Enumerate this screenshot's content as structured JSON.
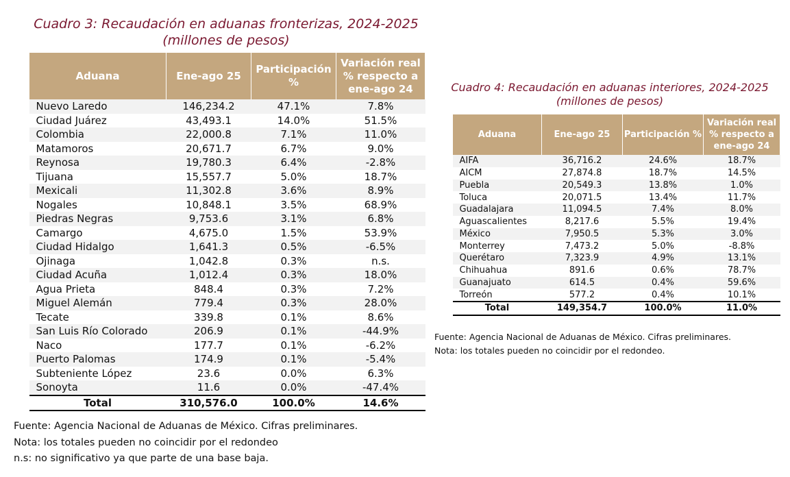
{
  "cuadro3": {
    "title": "Cuadro 3: Recaudación en aduanas fronterizas, 2024-2025",
    "subtitle": "(millones de pesos)",
    "headers": [
      "Aduana",
      "Ene-ago 25",
      "Participación %",
      "Variación real % respecto a ene-ago 24"
    ],
    "rows": [
      [
        "Nuevo Laredo",
        "146,234.2",
        "47.1%",
        "7.8%"
      ],
      [
        "Ciudad Juárez",
        "43,493.1",
        "14.0%",
        "51.5%"
      ],
      [
        "Colombia",
        "22,000.8",
        "7.1%",
        "11.0%"
      ],
      [
        "Matamoros",
        "20,671.7",
        "6.7%",
        "9.0%"
      ],
      [
        "Reynosa",
        "19,780.3",
        "6.4%",
        "-2.8%"
      ],
      [
        "Tijuana",
        "15,557.7",
        "5.0%",
        "18.7%"
      ],
      [
        "Mexicali",
        "11,302.8",
        "3.6%",
        "8.9%"
      ],
      [
        "Nogales",
        "10,848.1",
        "3.5%",
        "68.9%"
      ],
      [
        "Piedras Negras",
        "9,753.6",
        "3.1%",
        "6.8%"
      ],
      [
        "Camargo",
        "4,675.0",
        "1.5%",
        "53.9%"
      ],
      [
        "Ciudad Hidalgo",
        "1,641.3",
        "0.5%",
        "-6.5%"
      ],
      [
        "Ojinaga",
        "1,042.8",
        "0.3%",
        "n.s."
      ],
      [
        "Ciudad Acuña",
        "1,012.4",
        "0.3%",
        "18.0%"
      ],
      [
        "Agua Prieta",
        "848.4",
        "0.3%",
        "7.2%"
      ],
      [
        "Miguel Alemán",
        "779.4",
        "0.3%",
        "28.0%"
      ],
      [
        "Tecate",
        "339.8",
        "0.1%",
        "8.6%"
      ],
      [
        "San Luis Río Colorado",
        "206.9",
        "0.1%",
        "-44.9%"
      ],
      [
        "Naco",
        "177.7",
        "0.1%",
        "-6.2%"
      ],
      [
        "Puerto Palomas",
        "174.9",
        "0.1%",
        "-5.4%"
      ],
      [
        "Subteniente López",
        "23.6",
        "0.0%",
        "6.3%"
      ],
      [
        "Sonoyta",
        "11.6",
        "0.0%",
        "-47.4%"
      ]
    ],
    "total": [
      "Total",
      "310,576.0",
      "100.0%",
      "14.6%"
    ],
    "notes": [
      "Fuente:  Agencia Nacional de Aduanas de México. Cifras preliminares.",
      "Nota: los totales pueden no coincidir por el redondeo",
      "n.s: no significativo ya que parte de una base baja."
    ]
  },
  "cuadro4": {
    "title": "Cuadro 4: Recaudación en aduanas interiores, 2024-2025",
    "subtitle": "(millones de pesos)",
    "headers": [
      "Aduana",
      "Ene-ago 25",
      "Participación %",
      "Variación real % respecto a ene-ago 24"
    ],
    "rows": [
      [
        "AIFA",
        "36,716.2",
        "24.6%",
        "18.7%"
      ],
      [
        "AICM",
        "27,874.8",
        "18.7%",
        "14.5%"
      ],
      [
        "Puebla",
        "20,549.3",
        "13.8%",
        "1.0%"
      ],
      [
        "Toluca",
        "20,071.5",
        "13.4%",
        "11.7%"
      ],
      [
        "Guadalajara",
        "11,094.5",
        "7.4%",
        "8.0%"
      ],
      [
        "Aguascalientes",
        "8,217.6",
        "5.5%",
        "19.4%"
      ],
      [
        "México",
        "7,950.5",
        "5.3%",
        "3.0%"
      ],
      [
        "Monterrey",
        "7,473.2",
        "5.0%",
        "-8.8%"
      ],
      [
        "Querétaro",
        "7,323.9",
        "4.9%",
        "13.1%"
      ],
      [
        "Chihuahua",
        "891.6",
        "0.6%",
        "78.7%"
      ],
      [
        "Guanajuato",
        "614.5",
        "0.4%",
        "59.6%"
      ],
      [
        "Torreón",
        "577.2",
        "0.4%",
        "10.1%"
      ]
    ],
    "total": [
      "Total",
      "149,354.7",
      "100.0%",
      "11.0%"
    ],
    "notes": [
      "Fuente: Agencia Nacional de Aduanas de México. Cifras preliminares.",
      "Nota: los totales pueden no coincidir por el redondeo."
    ]
  }
}
